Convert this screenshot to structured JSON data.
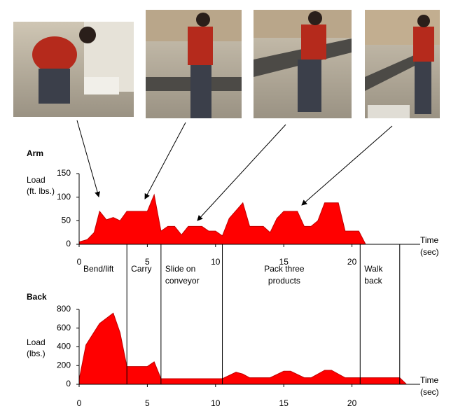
{
  "chart_data": [
    {
      "type": "area",
      "title": "Arm",
      "ylabel": [
        "Load",
        "(ft. lbs.)"
      ],
      "xlabel": [
        "Time",
        "(sec)"
      ],
      "x": [
        0,
        0.6,
        1.1,
        1.5,
        2,
        2.5,
        3,
        3.5,
        4,
        5,
        5.5,
        6,
        6.5,
        7,
        7.5,
        8,
        9,
        9.5,
        10,
        10.5,
        11,
        12,
        12.5,
        13,
        13.5,
        14,
        14.5,
        15,
        16,
        16.5,
        17,
        17.5,
        18,
        19,
        19.5,
        20,
        20.5,
        21
      ],
      "values": [
        5,
        10,
        25,
        70,
        52,
        57,
        50,
        70,
        70,
        70,
        105,
        28,
        38,
        38,
        20,
        38,
        38,
        28,
        28,
        18,
        55,
        88,
        38,
        38,
        38,
        25,
        55,
        70,
        70,
        38,
        38,
        50,
        88,
        88,
        28,
        28,
        28,
        0
      ],
      "color": "#ff0000",
      "xlim": [
        0,
        25
      ],
      "xticks": [
        0,
        5,
        10,
        15,
        20
      ],
      "ylim": [
        0,
        150
      ],
      "yticks": [
        0,
        50,
        100,
        150
      ]
    },
    {
      "type": "area",
      "title": "Back",
      "ylabel": [
        "Load",
        "(lbs.)"
      ],
      "xlabel": [
        "Time",
        "(sec)"
      ],
      "x": [
        0,
        0.5,
        1.5,
        2.5,
        3,
        3.5,
        4,
        5,
        5.5,
        6,
        7,
        10.5,
        11.5,
        12,
        12.5,
        14,
        15,
        15.5,
        16.5,
        17,
        18,
        18.5,
        19.5,
        20,
        23.5,
        24
      ],
      "values": [
        50,
        420,
        650,
        760,
        550,
        190,
        190,
        190,
        240,
        60,
        60,
        60,
        130,
        110,
        70,
        70,
        140,
        140,
        70,
        70,
        150,
        150,
        70,
        70,
        70,
        0
      ],
      "color": "#ff0000",
      "xlim": [
        0,
        25
      ],
      "xticks": [
        0,
        5,
        10,
        15,
        20
      ],
      "ylim": [
        0,
        800
      ],
      "yticks": [
        0,
        200,
        400,
        600,
        800
      ]
    }
  ],
  "phases": [
    {
      "label": [
        "Bend/lift"
      ],
      "end": 3.5
    },
    {
      "label": [
        "Carry"
      ],
      "end": 6
    },
    {
      "label": [
        "Slide on",
        "conveyor"
      ],
      "end": 10.5
    },
    {
      "label": [
        "Pack three",
        "products"
      ],
      "end": 20.6
    },
    {
      "label": [
        "Walk",
        "back"
      ],
      "end": 23.5
    }
  ]
}
